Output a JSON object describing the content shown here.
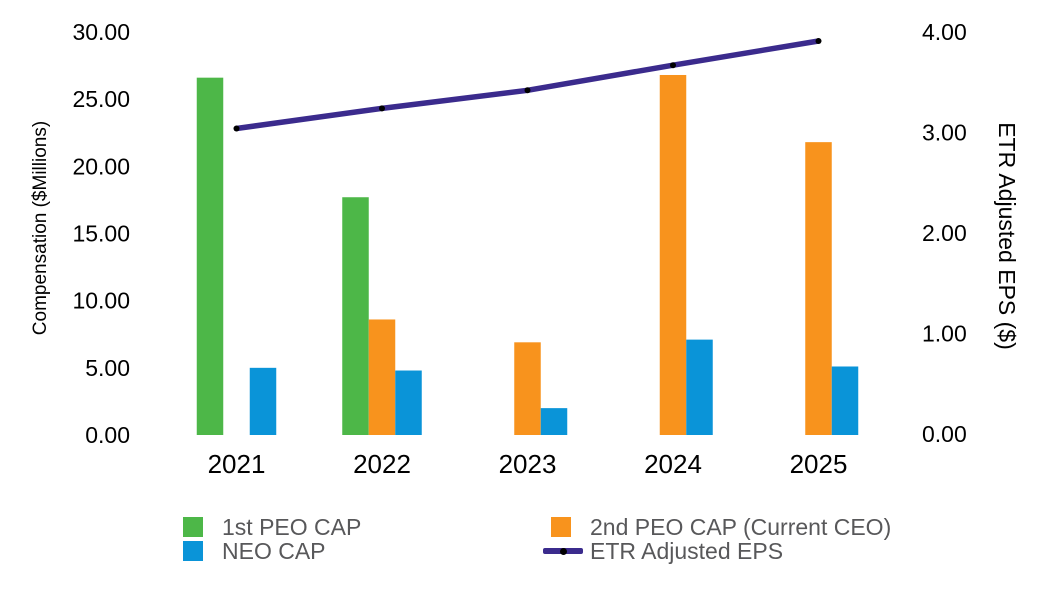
{
  "chart_data": {
    "type": "combo-bar-line",
    "title": "",
    "categories": [
      "2021",
      "2022",
      "2023",
      "2024",
      "2025"
    ],
    "bar_series": [
      {
        "name": "1st PEO CAP",
        "color": "#4DB748",
        "values": [
          26.6,
          17.7,
          null,
          null,
          null
        ]
      },
      {
        "name": "2nd PEO CAP (Current CEO)",
        "color": "#F8931D",
        "values": [
          null,
          8.6,
          6.9,
          26.8,
          21.8
        ]
      },
      {
        "name": "NEO CAP",
        "color": "#0A94D8",
        "values": [
          5.0,
          4.8,
          2.0,
          7.1,
          5.1
        ]
      }
    ],
    "line_series": {
      "name": "ETR Adjusted EPS",
      "color": "#3B2B8D",
      "marker_color": "#000000",
      "axis": "right",
      "values": [
        3.04,
        3.24,
        3.42,
        3.67,
        3.91
      ]
    },
    "left_axis": {
      "label": "Compensation ($Millions)",
      "min": 0,
      "max": 30,
      "ticks": [
        "30.00",
        "25.00",
        "20.00",
        "15.00",
        "10.00",
        "5.00",
        "0.00"
      ]
    },
    "right_axis": {
      "label": "ETR Adjusted EPS ($)",
      "min": 0,
      "max": 4,
      "ticks": [
        "4.00",
        "3.00",
        "2.00",
        "1.00",
        "0.00"
      ]
    },
    "legend": [
      {
        "label": "1st PEO CAP",
        "swatch": "square",
        "color": "#4DB748"
      },
      {
        "label": "NEO CAP",
        "swatch": "square",
        "color": "#0A94D8"
      },
      {
        "label": "2nd PEO CAP (Current CEO)",
        "swatch": "square",
        "color": "#F8931D"
      },
      {
        "label": "ETR Adjusted EPS",
        "swatch": "line-dot",
        "color": "#3B2B8D"
      }
    ],
    "grid": false,
    "axis_lines": false,
    "background": "#FFFFFF"
  }
}
